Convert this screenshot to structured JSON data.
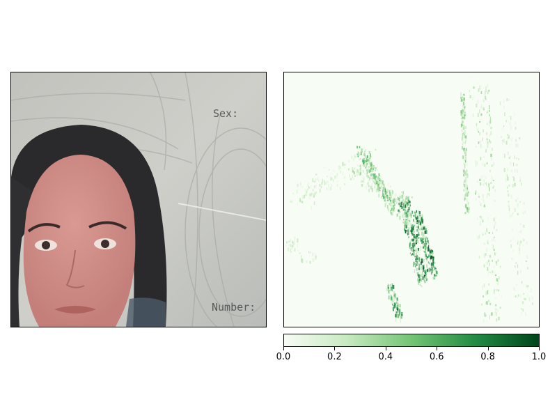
{
  "photo": {
    "document_text": [
      "Sex:",
      "Number:"
    ]
  },
  "colors": {
    "heatmap_low": "#f7fcf5",
    "heatmap_high": "#00441b",
    "photo_background": "#c9c9c3",
    "hair": "#2a2a2c",
    "skin": "#d4918c"
  },
  "chart_data": {
    "type": "heatmap",
    "colormap": "Greens",
    "colorbar": {
      "orientation": "horizontal",
      "placement": "bottom",
      "range": [
        0.0,
        1.0
      ],
      "ticks": [
        0.0,
        0.2,
        0.4,
        0.6,
        0.8,
        1.0
      ],
      "tick_labels": [
        "0.0",
        "0.2",
        "0.4",
        "0.6",
        "0.8",
        "1.0"
      ]
    },
    "grid": false,
    "title": "",
    "xlabel": "",
    "ylabel": ""
  }
}
